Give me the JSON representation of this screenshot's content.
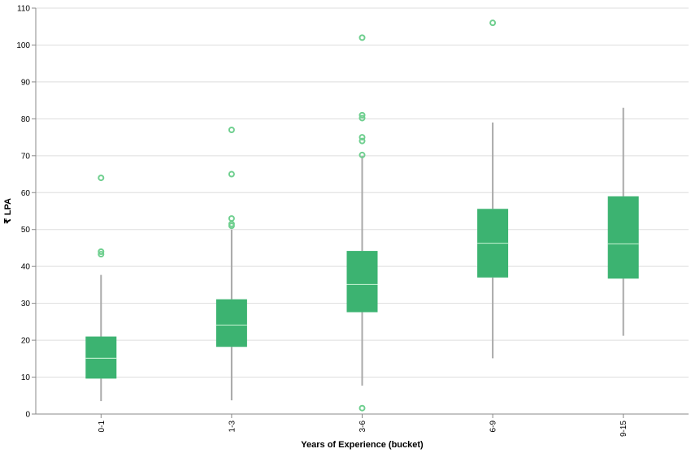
{
  "chart_data": {
    "type": "boxplot",
    "xlabel": "Years of Experience (bucket)",
    "ylabel": "₹ LPA",
    "ylim": [
      0,
      110
    ],
    "yticks": [
      0,
      10,
      20,
      30,
      40,
      50,
      60,
      70,
      80,
      90,
      100,
      110
    ],
    "grid": true,
    "categories": [
      "0-1",
      "1-3",
      "3-6",
      "6-9",
      "9-15"
    ],
    "boxes": [
      {
        "category": "0-1",
        "whisker_low": 3.5,
        "q1": 9.6,
        "median": 15.1,
        "q3": 21.0,
        "whisker_high": 37.7,
        "outliers": [
          43.3,
          44.0,
          64.0
        ]
      },
      {
        "category": "1-3",
        "whisker_low": 3.7,
        "q1": 18.2,
        "median": 24.1,
        "q3": 31.1,
        "whisker_high": 50.0,
        "outliers": [
          51.0,
          51.5,
          53.0,
          65.0,
          77.0
        ]
      },
      {
        "category": "3-6",
        "whisker_low": 7.7,
        "q1": 27.6,
        "median": 35.1,
        "q3": 44.2,
        "whisker_high": 70.0,
        "outliers": [
          1.6,
          70.2,
          74.0,
          75.0,
          80.2,
          81.0,
          102.0
        ]
      },
      {
        "category": "6-9",
        "whisker_low": 15.1,
        "q1": 37.0,
        "median": 46.3,
        "q3": 55.6,
        "whisker_high": 79.0,
        "outliers": [
          106.0
        ]
      },
      {
        "category": "9-15",
        "whisker_low": 21.2,
        "q1": 36.7,
        "median": 46.1,
        "q3": 59.0,
        "whisker_high": 83.0,
        "outliers": []
      }
    ],
    "colors": {
      "box": "#3cb371",
      "median": "#b8ecc9",
      "whisker": "#a9a9a9",
      "outlier": "#6fcf8f",
      "grid": "#dddddd",
      "axis": "#888888"
    }
  }
}
